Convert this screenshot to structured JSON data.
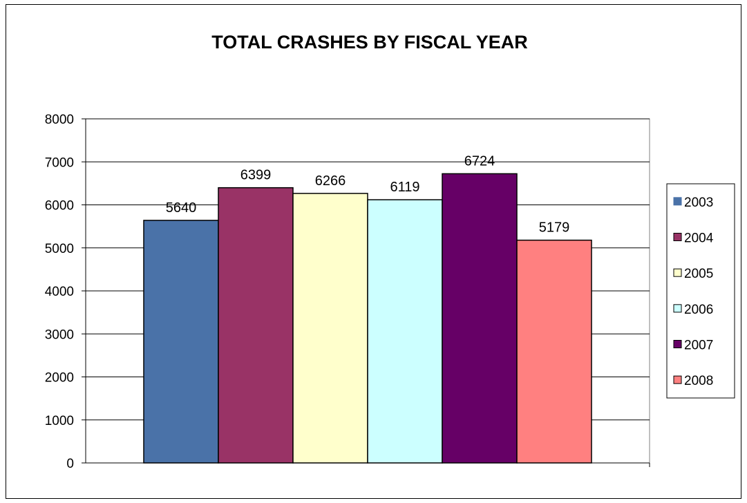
{
  "chart_data": {
    "type": "bar",
    "title": "TOTAL CRASHES BY FISCAL YEAR",
    "xlabel": "",
    "ylabel": "",
    "ylim": [
      0,
      8000
    ],
    "y_ticks": [
      "0",
      "1000",
      "2000",
      "3000",
      "4000",
      "5000",
      "6000",
      "7000",
      "8000"
    ],
    "grid": true,
    "legend_position": "right",
    "categories": [
      ""
    ],
    "series": [
      {
        "name": "2003",
        "values": [
          5640
        ],
        "color": "#4A72A8"
      },
      {
        "name": "2004",
        "values": [
          6399
        ],
        "color": "#993366"
      },
      {
        "name": "2005",
        "values": [
          6266
        ],
        "color": "#FFFFCC"
      },
      {
        "name": "2006",
        "values": [
          6119
        ],
        "color": "#CCFFFF"
      },
      {
        "name": "2007",
        "values": [
          6724
        ],
        "color": "#660066"
      },
      {
        "name": "2008",
        "values": [
          5179
        ],
        "color": "#FF8080"
      }
    ],
    "data_labels": [
      "5640",
      "6399",
      "6266",
      "6119",
      "6724",
      "5179"
    ]
  }
}
